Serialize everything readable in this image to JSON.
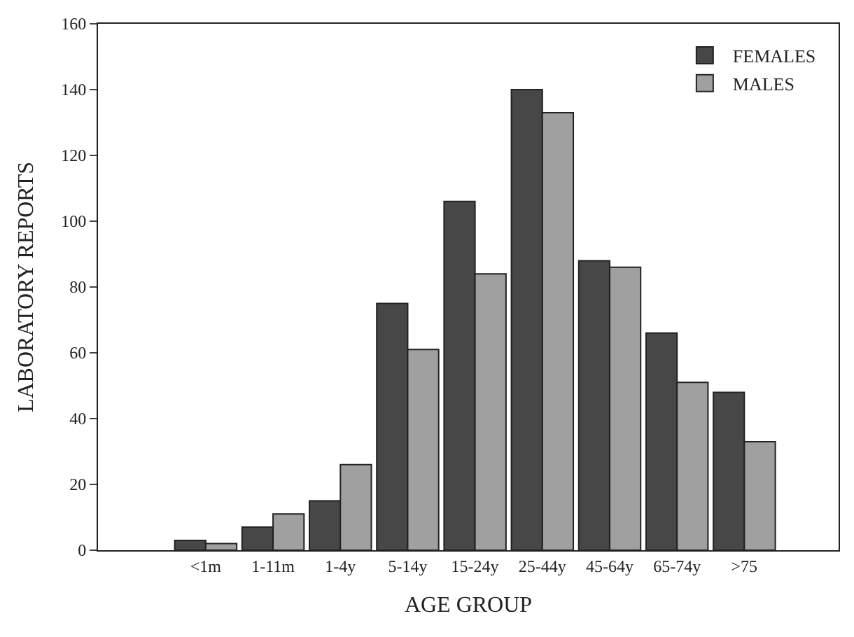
{
  "chart_data": {
    "type": "bar",
    "xlabel": "AGE GROUP",
    "ylabel": "LABORATORY REPORTS",
    "categories": [
      "<1m",
      "1-11m",
      "1-4y",
      "5-14y",
      "15-24y",
      "25-44y",
      "45-64y",
      "65-74y",
      ">75"
    ],
    "series": [
      {
        "name": "FEMALES",
        "color": "#474747",
        "values": [
          3,
          7,
          15,
          75,
          106,
          140,
          88,
          66,
          48
        ]
      },
      {
        "name": "MALES",
        "color": "#a0a0a0",
        "values": [
          2,
          11,
          26,
          61,
          84,
          133,
          86,
          51,
          33
        ]
      }
    ],
    "ylim": [
      0,
      160
    ],
    "yticks": [
      0,
      20,
      40,
      60,
      80,
      100,
      120,
      140,
      160
    ],
    "legend": "top right"
  }
}
